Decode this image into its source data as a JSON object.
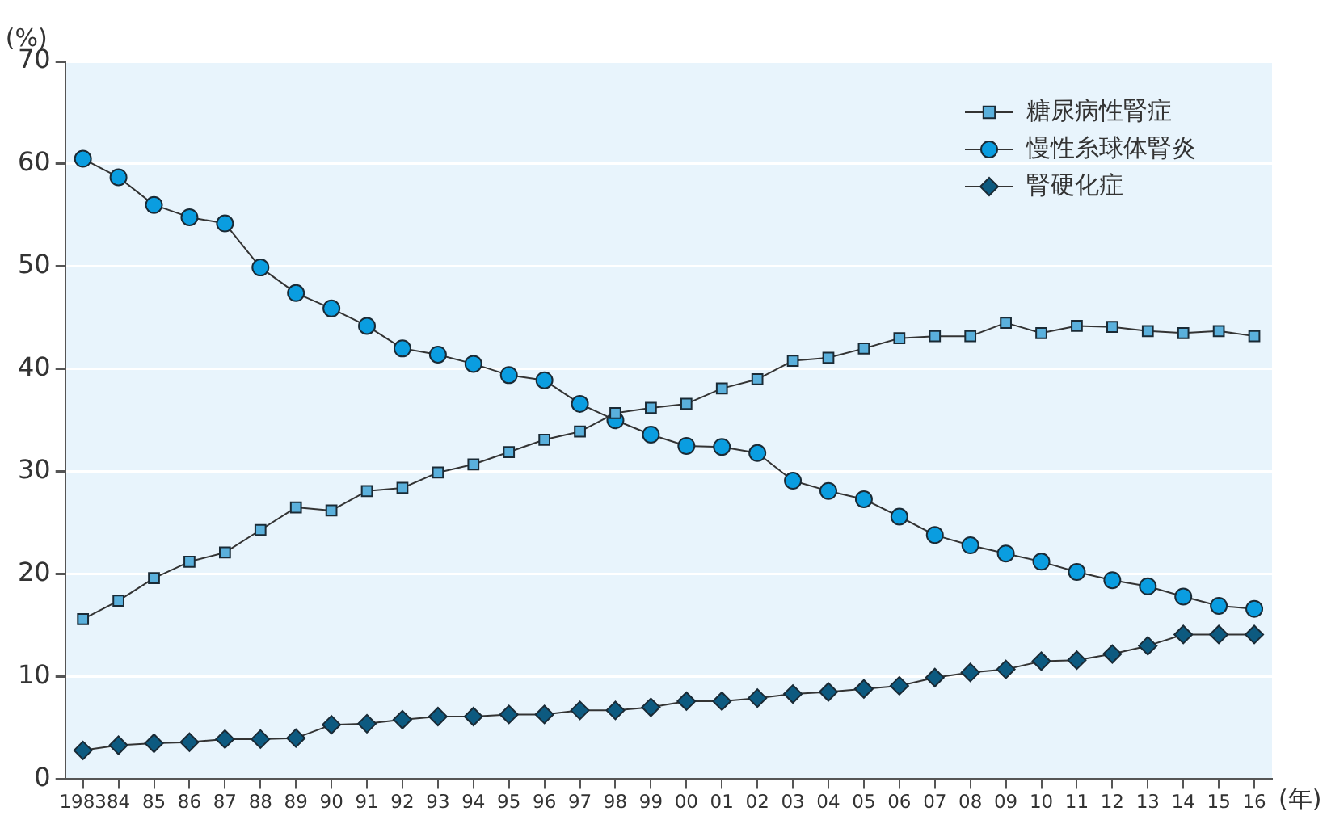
{
  "chart_data": {
    "type": "line",
    "ylabel": "(%)",
    "xlabel": "(年)",
    "categories": [
      "1983",
      "84",
      "85",
      "86",
      "87",
      "88",
      "89",
      "90",
      "91",
      "92",
      "93",
      "94",
      "95",
      "96",
      "97",
      "98",
      "99",
      "00",
      "01",
      "02",
      "03",
      "04",
      "05",
      "06",
      "07",
      "08",
      "09",
      "10",
      "11",
      "12",
      "13",
      "14",
      "15",
      "16"
    ],
    "series": [
      {
        "name": "糖尿病性腎症",
        "color": "#5ab0dc",
        "marker": "square",
        "values": [
          15.6,
          17.4,
          19.6,
          21.2,
          22.1,
          24.3,
          26.5,
          26.2,
          28.1,
          28.4,
          29.9,
          30.7,
          31.9,
          33.1,
          33.9,
          35.7,
          36.2,
          36.6,
          38.1,
          39.0,
          40.8,
          41.1,
          42.0,
          43.0,
          43.2,
          43.2,
          44.5,
          43.5,
          44.2,
          44.1,
          43.7,
          43.5,
          43.7,
          43.2
        ]
      },
      {
        "name": "慢性糸球体腎炎",
        "color": "#0a9de0",
        "marker": "circle",
        "values": [
          60.5,
          58.7,
          56.0,
          54.8,
          54.2,
          49.9,
          47.4,
          45.9,
          44.2,
          42.0,
          41.4,
          40.5,
          39.4,
          38.9,
          36.6,
          35.0,
          33.6,
          32.5,
          32.4,
          31.8,
          29.1,
          28.1,
          27.3,
          25.6,
          23.8,
          22.8,
          22.0,
          21.2,
          20.2,
          19.4,
          18.8,
          17.8,
          16.9,
          16.6
        ]
      },
      {
        "name": "腎硬化症",
        "color": "#0d5a80",
        "marker": "diamond",
        "values": [
          2.8,
          3.3,
          3.5,
          3.6,
          3.9,
          3.9,
          4.0,
          5.3,
          5.4,
          5.8,
          6.1,
          6.1,
          6.3,
          6.3,
          6.7,
          6.7,
          7.0,
          7.6,
          7.6,
          7.9,
          8.3,
          8.5,
          8.8,
          9.1,
          9.9,
          10.4,
          10.7,
          11.5,
          11.6,
          12.2,
          13.0,
          14.1,
          14.1,
          14.1
        ]
      }
    ],
    "ylim": [
      0,
      70
    ],
    "yticks": [
      0,
      10,
      20,
      30,
      40,
      50,
      60,
      70
    ],
    "grid": "y",
    "legend": "top right",
    "line_style": "solid"
  }
}
